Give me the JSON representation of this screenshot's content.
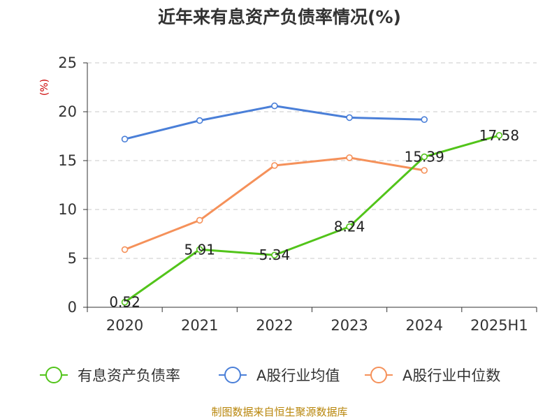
{
  "chart_data": {
    "type": "line",
    "title": "近年来有息资产负债率情况(%)",
    "unit_label": "(%)",
    "categories": [
      "2020",
      "2021",
      "2022",
      "2023",
      "2024",
      "2025H1"
    ],
    "ylim": [
      0,
      25
    ],
    "yticks": [
      0,
      5,
      10,
      15,
      20,
      25
    ],
    "grid": "horizontal-dashed",
    "legend_position": "bottom",
    "series": [
      {
        "name": "有息资产负债率",
        "color": "#52c41a",
        "values": [
          0.52,
          5.91,
          5.34,
          8.24,
          15.39,
          17.58
        ],
        "show_labels": true
      },
      {
        "name": "A股行业均值",
        "color": "#4a7fd8",
        "values": [
          17.2,
          19.1,
          20.6,
          19.4,
          19.2,
          null
        ],
        "show_labels": false
      },
      {
        "name": "A股行业中位数",
        "color": "#f5915a",
        "values": [
          5.9,
          8.9,
          14.5,
          15.3,
          14.0,
          null
        ],
        "show_labels": false
      }
    ],
    "data_labels": [
      "0.52",
      "5.91",
      "5.34",
      "8.24",
      "15.39",
      "17.58"
    ],
    "source": "制图数据来自恒生聚源数据库"
  }
}
